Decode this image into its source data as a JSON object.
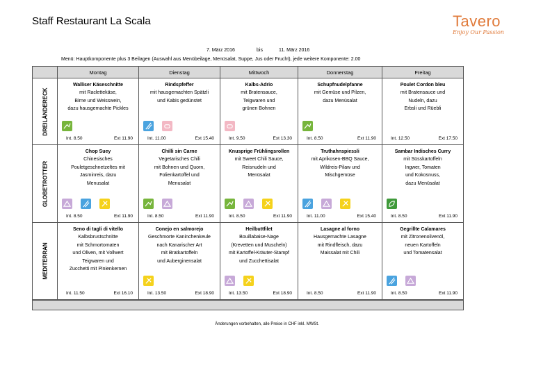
{
  "header": {
    "title": "Staff Restaurant La Scala",
    "logo_word": "Tavero",
    "logo_tagline": "Enjoy Our Passion"
  },
  "period": {
    "from": "7. März 2016",
    "sep": "bis",
    "to": "11. März 2016"
  },
  "note": "Menü: Hauptkomponente plus 3 Beilagen (Auswahl aus Menübeilage, Menüsalat, Suppe, Jus oder Frucht), jede weitere Komponente: 2.00",
  "days": [
    "Montag",
    "Dienstag",
    "Mittwoch",
    "Donnerstag",
    "Freitag"
  ],
  "lines": [
    {
      "name": "DREILÄNDERECK",
      "items": [
        {
          "dish": "Walliser Käseschnitte",
          "desc": [
            "mit Raclettekäse,",
            "Birne und Weisswein,",
            "dazu hausgemachte Pickles"
          ],
          "icons": [
            "green"
          ],
          "int": "Int. 8.50",
          "ext": "Ext 11.90"
        },
        {
          "dish": "Rindspfeffer",
          "desc": [
            "mit hausgemachten Spätzli",
            "und Kabis gedünstet"
          ],
          "icons": [
            "blue",
            "pink"
          ],
          "int": "Int. 11.00",
          "ext": "Ext 15.40"
        },
        {
          "dish": "Kalbs-Adrio",
          "desc": [
            "mit Bratensauce,",
            "Teigwaren und",
            "grünen Bohnen"
          ],
          "icons": [
            "pink"
          ],
          "int": "Int. 9.50",
          "ext": "Ext 13.30"
        },
        {
          "dish": "Schupfnudelpfanne",
          "desc": [
            "mit Gemüse und Pilzen,",
            "dazu Menüsalat"
          ],
          "icons": [
            "green"
          ],
          "int": "Int. 8.50",
          "ext": "Ext 11.90"
        },
        {
          "dish": "Poulet Cordon bleu",
          "desc": [
            "mit Bratensauce und",
            "Nudeln, dazu",
            "Erbsli und Rüebli"
          ],
          "icons": [],
          "int": "Int. 12.50",
          "ext": "Ext 17.50"
        }
      ]
    },
    {
      "name": "GLOBETROTTER",
      "items": [
        {
          "dish": "Chop Suey",
          "desc": [
            "Chinesisches",
            "Pouletgeschnetzeltes mit",
            "Jasminreis, dazu",
            "Menusalat"
          ],
          "icons": [
            "purple",
            "blue",
            "yellow"
          ],
          "int": "Int. 8.50",
          "ext": "Ext 11.90"
        },
        {
          "dish": "Chilli sin Carne",
          "desc": [
            "Vegetarisches Chili",
            "mit Bohnen und Quorn,",
            "Folienkartoffel und",
            "Menusalat"
          ],
          "icons": [
            "green",
            "purple"
          ],
          "int": "Int. 8.50",
          "ext": "Ext 11.90"
        },
        {
          "dish": "Knusprige Frühlingsrollen",
          "desc": [
            "mit Sweet Chili Sauce,",
            "Reisnudeln und",
            "Menüsalat"
          ],
          "icons": [
            "green",
            "purple",
            "yellow"
          ],
          "int": "Int. 8.50",
          "ext": "Ext 11.90"
        },
        {
          "dish": "Truthahnspiessli",
          "desc": [
            "mit Aprikosen-BBQ Sauce,",
            "Wildreis-Pilaw und",
            "Mischgemüse"
          ],
          "icons": [
            "blue",
            "purple",
            "yellow"
          ],
          "int": "Int. 11.00",
          "ext": "Ext 15.40"
        },
        {
          "dish": "Sambar Indisches Curry",
          "desc": [
            "mit Süsskartoffeln",
            "Ingwer, Tomaten",
            "und Kokosnuss,",
            "dazu Menüsalat"
          ],
          "icons": [
            "leaf"
          ],
          "int": "Int. 8.50",
          "ext": "Ext 11.90"
        }
      ]
    },
    {
      "name": "MEDITERRAN",
      "items": [
        {
          "dish": "Seno di tagli di vitello",
          "desc": [
            "Kalbsbrustschnitte",
            "mit Schmortomaten",
            "und Oliven, mit Vollwert",
            "Teigwaren und",
            "Zucchetti mit Pinienkernen"
          ],
          "icons": [],
          "int": "Int. 11.50",
          "ext": "Ext 16.10"
        },
        {
          "dish": "Conejo en salmorejo",
          "desc": [
            "Geschmorte Kaninchenkeule",
            "nach Kanarischer Art",
            "mit Bratkartoffeln",
            "und Auberginensalat"
          ],
          "icons": [
            "yellow"
          ],
          "int": "Int. 13.50",
          "ext": "Ext 18.90"
        },
        {
          "dish": "Heilbuttfilet",
          "desc": [
            "Bouillabaise-Nage",
            "(Krevetten und Muscheln)",
            "mit Kartoffel-Kräuter-Stampf",
            "und Zucchettisalat"
          ],
          "icons": [
            "purple",
            "yellow"
          ],
          "int": "Int. 13.50",
          "ext": "Ext 18.90"
        },
        {
          "dish": "Lasagne al forno",
          "desc": [
            "Hausgemachte Lasagne",
            "mit Rindfleisch, dazu",
            "Maissalat mit Chili"
          ],
          "icons": [],
          "int": "Int. 8.50",
          "ext": "Ext 11.90"
        },
        {
          "dish": "Gegrillte Calamares",
          "desc": [
            "mit Zitronenolivenöl,",
            "neuen Kartoffeln",
            "und Tomatensalat"
          ],
          "icons": [
            "blue",
            "purple"
          ],
          "int": "Int. 8.50",
          "ext": "Ext 11.90"
        }
      ]
    }
  ],
  "footer": "Änderungen vorbehalten, alle Preise in CHF inkl. MWSt.",
  "colors": {
    "green": "#77b53c",
    "blue": "#4aa3df",
    "pink": "#f3b8c4",
    "purple": "#c7a9d8",
    "yellow": "#f5d21c",
    "leaf": "#3f9a3a",
    "header_bg": "#d9d9d9",
    "brand": "#e07a3a"
  }
}
